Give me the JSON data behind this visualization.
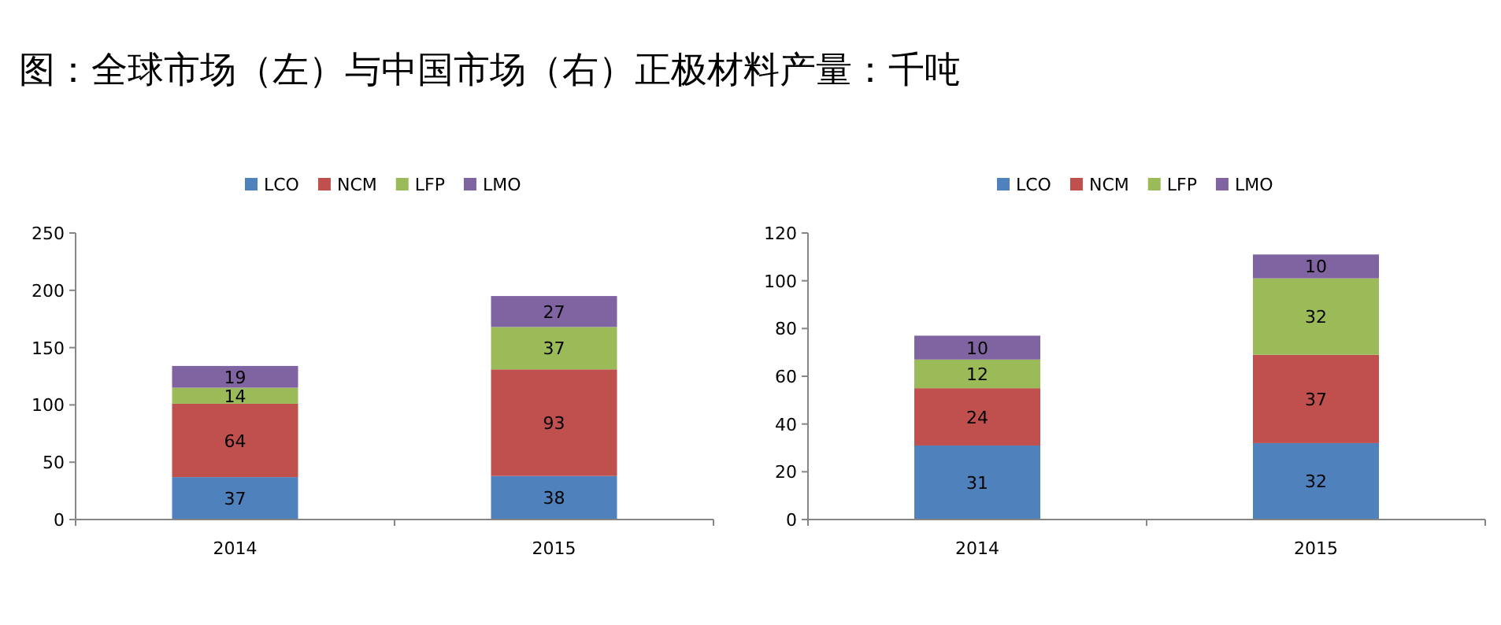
{
  "chart_data": [
    {
      "type": "bar",
      "title": "图：全球市场（左）与中国市场（右）正极材料产量：千吨",
      "categories": [
        "2014",
        "2015"
      ],
      "stacked": true,
      "data_labels": true,
      "legend": "top",
      "ylim": [
        0,
        250
      ],
      "yticks": [
        0,
        50,
        100,
        150,
        200,
        250
      ],
      "series": [
        {
          "name": "LCO",
          "color": "#4f81bd",
          "values": [
            37,
            38
          ]
        },
        {
          "name": "NCM",
          "color": "#c0504d",
          "values": [
            64,
            93
          ]
        },
        {
          "name": "LFP",
          "color": "#9bbb59",
          "values": [
            14,
            37
          ]
        },
        {
          "name": "LMO",
          "color": "#8064a2",
          "values": [
            19,
            27
          ]
        }
      ]
    },
    {
      "type": "bar",
      "categories": [
        "2014",
        "2015"
      ],
      "stacked": true,
      "data_labels": true,
      "legend": "top",
      "ylim": [
        0,
        120
      ],
      "yticks": [
        0,
        20,
        40,
        60,
        80,
        100,
        120
      ],
      "series": [
        {
          "name": "LCO",
          "color": "#4f81bd",
          "values": [
            31,
            32
          ]
        },
        {
          "name": "NCM",
          "color": "#c0504d",
          "values": [
            24,
            37
          ]
        },
        {
          "name": "LFP",
          "color": "#9bbb59",
          "values": [
            12,
            32
          ]
        },
        {
          "name": "LMO",
          "color": "#8064a2",
          "values": [
            10,
            10
          ]
        }
      ]
    }
  ]
}
